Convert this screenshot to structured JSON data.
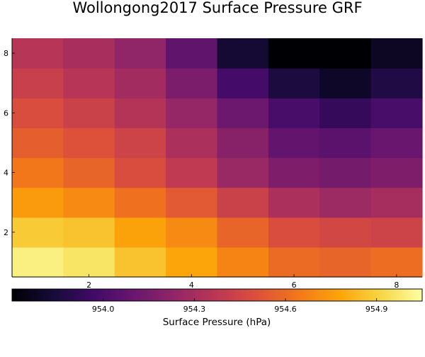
{
  "chart_data": {
    "type": "heatmap",
    "title": "Wollongong2017 Surface Pressure GRF",
    "x": [
      1,
      2,
      3,
      4,
      5,
      6,
      7,
      8
    ],
    "y": [
      1,
      2,
      3,
      4,
      5,
      6,
      7,
      8
    ],
    "x_ticks": [
      2,
      4,
      6,
      8
    ],
    "y_ticks": [
      2,
      4,
      6,
      8
    ],
    "xlim": [
      0.5,
      8.5
    ],
    "ylim": [
      0.5,
      8.5
    ],
    "z": [
      [
        955.0,
        954.96,
        954.86,
        954.78,
        954.68,
        954.6,
        954.58,
        954.61
      ],
      [
        954.88,
        954.86,
        954.77,
        954.7,
        954.58,
        954.49,
        954.46,
        954.44
      ],
      [
        954.75,
        954.7,
        954.62,
        954.54,
        954.43,
        954.32,
        954.27,
        954.3
      ],
      [
        954.64,
        954.58,
        954.49,
        954.39,
        954.26,
        954.17,
        954.14,
        954.17
      ],
      [
        954.56,
        954.51,
        954.44,
        954.32,
        954.2,
        954.08,
        954.05,
        954.1
      ],
      [
        954.49,
        954.43,
        954.35,
        954.25,
        954.11,
        953.99,
        953.93,
        953.99
      ],
      [
        954.42,
        954.36,
        954.29,
        954.16,
        953.98,
        953.85,
        953.79,
        953.87
      ],
      [
        954.36,
        954.31,
        954.23,
        954.07,
        953.82,
        953.7,
        953.7,
        953.78
      ]
    ],
    "colorscale": "inferno",
    "zlim": [
      953.7,
      955.05
    ],
    "colorbar": {
      "label": "Surface Pressure (hPa)",
      "ticks": [
        954.0,
        954.3,
        954.6,
        954.9
      ],
      "tick_labels": [
        "954.0",
        "954.3",
        "954.6",
        "954.9"
      ],
      "orientation": "horizontal"
    },
    "grid": false,
    "legend": "none"
  }
}
